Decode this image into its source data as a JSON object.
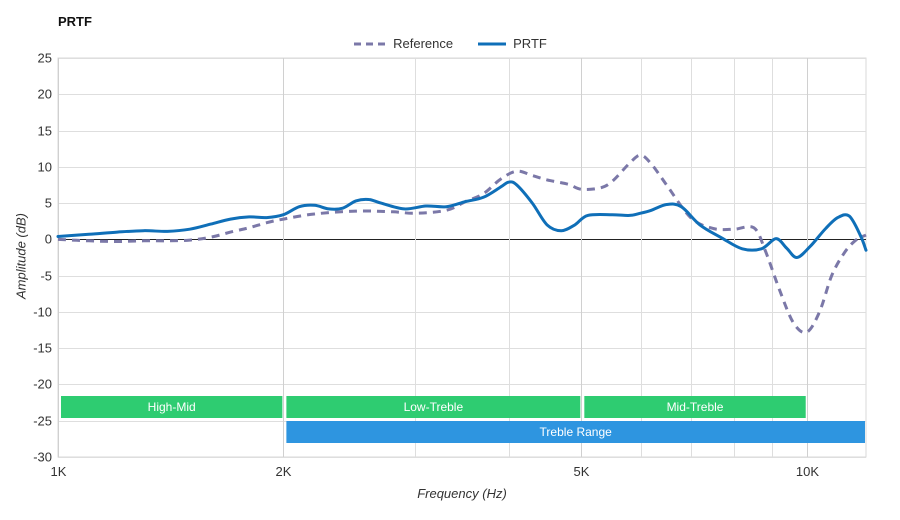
{
  "chart_data": {
    "type": "line",
    "title": "PRTF",
    "xlabel": "Frequency (Hz)",
    "ylabel": "Amplitude (dB)",
    "x_scale": "log",
    "xlim": [
      1000,
      12000
    ],
    "ylim": [
      -30,
      25
    ],
    "x_ticks": [
      {
        "value": 1000,
        "label": "1K"
      },
      {
        "value": 2000,
        "label": "2K"
      },
      {
        "value": 5000,
        "label": "5K"
      },
      {
        "value": 10000,
        "label": "10K"
      }
    ],
    "x_minor_gridlines": [
      3000,
      4000,
      6000,
      7000,
      8000,
      9000
    ],
    "y_ticks": [
      25,
      20,
      15,
      10,
      5,
      0,
      -5,
      -10,
      -15,
      -20,
      -25,
      -30
    ],
    "grid": true,
    "legend_position": "top-center",
    "series": [
      {
        "name": "Reference",
        "color": "#7B78A8",
        "style": "dashed",
        "points": [
          [
            1000,
            0.0
          ],
          [
            1100,
            -0.2
          ],
          [
            1200,
            -0.3
          ],
          [
            1300,
            -0.2
          ],
          [
            1400,
            -0.2
          ],
          [
            1500,
            -0.1
          ],
          [
            1600,
            0.3
          ],
          [
            1700,
            1.0
          ],
          [
            1800,
            1.6
          ],
          [
            1900,
            2.3
          ],
          [
            2000,
            2.8
          ],
          [
            2200,
            3.5
          ],
          [
            2500,
            3.9
          ],
          [
            2800,
            3.8
          ],
          [
            3000,
            3.6
          ],
          [
            3300,
            4.0
          ],
          [
            3500,
            5.2
          ],
          [
            3700,
            6.3
          ],
          [
            3900,
            8.3
          ],
          [
            4100,
            9.4
          ],
          [
            4300,
            8.8
          ],
          [
            4500,
            8.2
          ],
          [
            4800,
            7.6
          ],
          [
            5000,
            6.9
          ],
          [
            5300,
            7.1
          ],
          [
            5500,
            8.0
          ],
          [
            5800,
            10.5
          ],
          [
            6000,
            11.6
          ],
          [
            6200,
            10.4
          ],
          [
            6500,
            7.5
          ],
          [
            7000,
            3.0
          ],
          [
            7500,
            1.5
          ],
          [
            8000,
            1.4
          ],
          [
            8500,
            1.6
          ],
          [
            8800,
            -1.5
          ],
          [
            9200,
            -7.0
          ],
          [
            9600,
            -11.5
          ],
          [
            10000,
            -12.8
          ],
          [
            10400,
            -10.0
          ],
          [
            10800,
            -5.0
          ],
          [
            11200,
            -2.0
          ],
          [
            11600,
            -0.2
          ],
          [
            12000,
            0.6
          ]
        ]
      },
      {
        "name": "PRTF",
        "color": "#0F6FB8",
        "style": "solid",
        "points": [
          [
            1000,
            0.4
          ],
          [
            1100,
            0.7
          ],
          [
            1200,
            1.0
          ],
          [
            1300,
            1.2
          ],
          [
            1400,
            1.1
          ],
          [
            1500,
            1.4
          ],
          [
            1600,
            2.1
          ],
          [
            1700,
            2.8
          ],
          [
            1800,
            3.1
          ],
          [
            1900,
            3.0
          ],
          [
            2000,
            3.4
          ],
          [
            2100,
            4.5
          ],
          [
            2200,
            4.7
          ],
          [
            2300,
            4.2
          ],
          [
            2400,
            4.3
          ],
          [
            2500,
            5.3
          ],
          [
            2600,
            5.5
          ],
          [
            2700,
            5.0
          ],
          [
            2900,
            4.2
          ],
          [
            3100,
            4.6
          ],
          [
            3300,
            4.5
          ],
          [
            3500,
            5.2
          ],
          [
            3700,
            5.8
          ],
          [
            3900,
            7.2
          ],
          [
            4000,
            7.9
          ],
          [
            4100,
            7.5
          ],
          [
            4300,
            5.0
          ],
          [
            4500,
            2.0
          ],
          [
            4700,
            1.2
          ],
          [
            4900,
            2.0
          ],
          [
            5100,
            3.3
          ],
          [
            5500,
            3.4
          ],
          [
            5800,
            3.3
          ],
          [
            6000,
            3.6
          ],
          [
            6200,
            4.0
          ],
          [
            6500,
            4.8
          ],
          [
            6800,
            4.5
          ],
          [
            7200,
            2.0
          ],
          [
            7700,
            0.2
          ],
          [
            8200,
            -1.3
          ],
          [
            8700,
            -1.3
          ],
          [
            9100,
            0.1
          ],
          [
            9400,
            -1.2
          ],
          [
            9700,
            -2.5
          ],
          [
            10100,
            -1.0
          ],
          [
            10600,
            1.5
          ],
          [
            11000,
            3.0
          ],
          [
            11400,
            3.2
          ],
          [
            11800,
            0.5
          ],
          [
            12000,
            -1.5
          ]
        ]
      }
    ],
    "bands": [
      {
        "label": "High-Mid",
        "from": 1000,
        "to": 2000,
        "row": 0,
        "color": "#2ECC71"
      },
      {
        "label": "Low-Treble",
        "from": 2000,
        "to": 5000,
        "row": 0,
        "color": "#2ECC71"
      },
      {
        "label": "Mid-Treble",
        "from": 5000,
        "to": 10000,
        "row": 0,
        "color": "#2ECC71"
      },
      {
        "label": "Treble Range",
        "from": 2000,
        "to": 12000,
        "row": 1,
        "color": "#2E95E0"
      }
    ]
  }
}
